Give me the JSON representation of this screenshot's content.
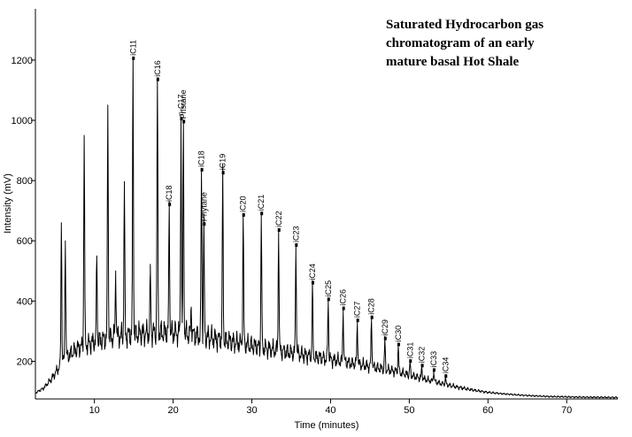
{
  "chart_data": {
    "type": "line",
    "title": "Saturated Hydrocarbon gas\nchromatogram of an early\nmature basal Hot Shale",
    "xlabel": "Time (minutes)",
    "ylabel": "Intensity (mV)",
    "xlim": [
      2.5,
      76.5
    ],
    "ylim": [
      75,
      1370
    ],
    "xticks": [
      10,
      20,
      30,
      40,
      50,
      60,
      70
    ],
    "yticks": [
      200,
      400,
      600,
      800,
      1000,
      1200
    ],
    "grid": false,
    "legend": "none",
    "series": [
      {
        "baseline": [
          [
            2.5,
            95
          ],
          [
            3.5,
            110
          ],
          [
            4.5,
            140
          ],
          [
            5.5,
            180
          ],
          [
            6.5,
            215
          ],
          [
            8,
            245
          ],
          [
            10,
            265
          ],
          [
            12,
            278
          ],
          [
            14,
            286
          ],
          [
            16,
            292
          ],
          [
            18,
            295
          ],
          [
            20,
            295
          ],
          [
            22,
            290
          ],
          [
            24,
            282
          ],
          [
            26,
            272
          ],
          [
            28,
            262
          ],
          [
            30,
            252
          ],
          [
            32,
            242
          ],
          [
            34,
            233
          ],
          [
            36,
            224
          ],
          [
            38,
            215
          ],
          [
            40,
            206
          ],
          [
            42,
            197
          ],
          [
            44,
            188
          ],
          [
            46,
            178
          ],
          [
            48,
            168
          ],
          [
            50,
            155
          ],
          [
            52,
            140
          ],
          [
            54,
            127
          ],
          [
            56,
            115
          ],
          [
            58,
            105
          ],
          [
            60,
            97
          ],
          [
            62,
            92
          ],
          [
            64,
            88
          ],
          [
            66,
            85
          ],
          [
            68,
            83
          ],
          [
            70,
            82
          ],
          [
            72,
            81
          ],
          [
            76.5,
            80
          ]
        ],
        "peaks": [
          {
            "x": 5.8,
            "y": 660
          },
          {
            "x": 6.3,
            "y": 600
          },
          {
            "x": 8.7,
            "y": 950
          },
          {
            "x": 10.3,
            "y": 550
          },
          {
            "x": 11.7,
            "y": 1050
          },
          {
            "x": 12.7,
            "y": 500
          },
          {
            "x": 13.8,
            "y": 780
          },
          {
            "x": 14.9,
            "y": 1200,
            "label": "iC11"
          },
          {
            "x": 17.1,
            "y": 490
          },
          {
            "x": 18.0,
            "y": 1130,
            "label": "iC16"
          },
          {
            "x": 19.5,
            "y": 715,
            "label": "iC18"
          },
          {
            "x": 21.0,
            "y": 1000,
            "label": "n-C17"
          },
          {
            "x": 21.3,
            "y": 990,
            "label": "Pristane"
          },
          {
            "x": 22.3,
            "y": 380
          },
          {
            "x": 23.6,
            "y": 830,
            "label": "iC18"
          },
          {
            "x": 23.9,
            "y": 650,
            "label": "Phytane"
          },
          {
            "x": 26.3,
            "y": 820,
            "label": "iC19"
          },
          {
            "x": 28.9,
            "y": 680,
            "label": "iC20"
          },
          {
            "x": 31.2,
            "y": 685,
            "label": "iC21"
          },
          {
            "x": 33.4,
            "y": 630,
            "label": "iC22"
          },
          {
            "x": 35.6,
            "y": 580,
            "label": "iC23"
          },
          {
            "x": 37.7,
            "y": 455,
            "label": "iC24"
          },
          {
            "x": 39.7,
            "y": 400,
            "label": "iC25"
          },
          {
            "x": 41.6,
            "y": 370,
            "label": "iC26"
          },
          {
            "x": 43.4,
            "y": 330,
            "label": "iC27"
          },
          {
            "x": 45.2,
            "y": 340,
            "label": "iC28"
          },
          {
            "x": 46.9,
            "y": 270,
            "label": "iC29"
          },
          {
            "x": 48.6,
            "y": 250,
            "label": "iC30"
          },
          {
            "x": 50.1,
            "y": 195,
            "label": "iC31"
          },
          {
            "x": 51.6,
            "y": 180,
            "label": "iC32"
          },
          {
            "x": 53.1,
            "y": 165,
            "label": "iC33"
          },
          {
            "x": 54.6,
            "y": 145,
            "label": "iC34"
          }
        ]
      }
    ]
  }
}
